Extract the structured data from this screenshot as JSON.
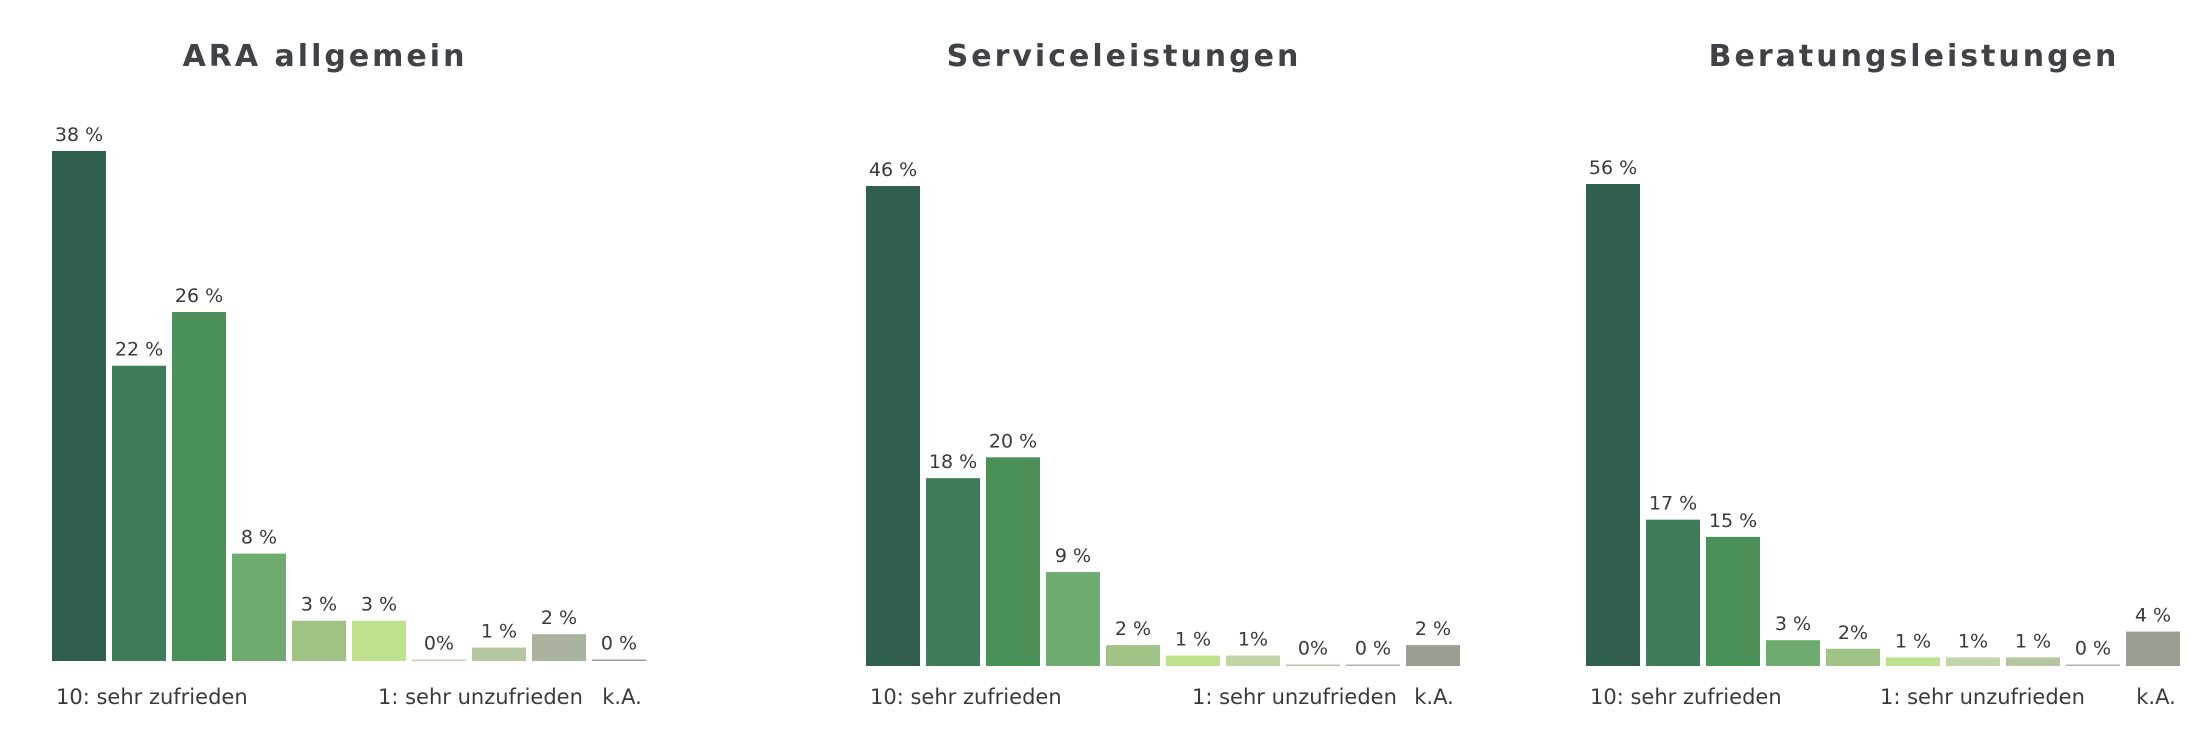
{
  "colors": [
    "#305f4e",
    "#3e7d5a",
    "#4a9058",
    "#6eab6e",
    "#a0c284",
    "#bfe08f",
    "#c3d6aa",
    "#b4c6a0",
    "#aab3a0",
    "#999e92"
  ],
  "chart_data": [
    {
      "type": "bar",
      "title": "ARA allgemein",
      "values": [
        38,
        22,
        26,
        8,
        3,
        3,
        0,
        1,
        2,
        0
      ],
      "value_labels": [
        "38 %",
        "22 %",
        "26 %",
        "8 %",
        "3 %",
        "3 %",
        "0%",
        "1 %",
        "2 %",
        "0 %"
      ],
      "axis_left_label": "10: sehr zufrieden",
      "axis_right_label": "1: sehr unzufrieden",
      "axis_na_label": "k.A."
    },
    {
      "type": "bar",
      "title": "Serviceleistungen",
      "values": [
        46,
        18,
        20,
        9,
        2,
        1,
        1,
        0,
        0,
        2
      ],
      "value_labels": [
        "46 %",
        "18 %",
        "20 %",
        "9 %",
        "2 %",
        "1 %",
        "1%",
        "0%",
        "0 %",
        "2 %"
      ],
      "axis_left_label": "10: sehr zufrieden",
      "axis_right_label": "1: sehr unzufrieden",
      "axis_na_label": "k.A."
    },
    {
      "type": "bar",
      "title": "Beratungsleistungen",
      "values": [
        56,
        17,
        15,
        3,
        2,
        1,
        1,
        1,
        0,
        4
      ],
      "value_labels": [
        "56 %",
        "17 %",
        "15 %",
        "3 %",
        "2%",
        "1 %",
        "1%",
        "1 %",
        "0 %",
        "4 %"
      ],
      "axis_left_label": "10: sehr zufrieden",
      "axis_right_label": "1: sehr unzufrieden",
      "axis_na_label": "k.A."
    }
  ]
}
